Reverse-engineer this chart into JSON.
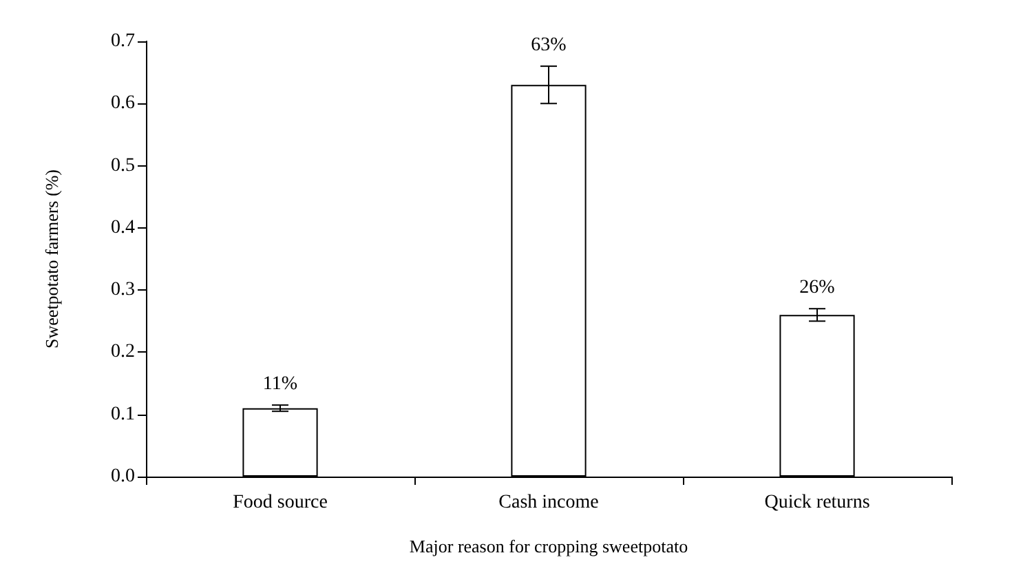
{
  "chart_data": {
    "type": "bar",
    "xlabel": "Major reason for cropping sweetpotato",
    "ylabel": "Sweetpotato farmers (%)",
    "categories": [
      "Food source",
      "Cash income",
      "Quick returns"
    ],
    "values": [
      0.11,
      0.63,
      0.26
    ],
    "color": "#ffffff",
    "errors": [
      0.005,
      0.03,
      0.01
    ],
    "value_labels": [
      "11%",
      "63%",
      "26%"
    ],
    "ylim": [
      0,
      0.7
    ],
    "yticks": [
      {
        "value": 0,
        "label": "0.0"
      },
      0.1,
      0.2,
      0.3,
      0.4,
      0.5,
      0.6,
      0.7
    ],
    "grid": false
  }
}
